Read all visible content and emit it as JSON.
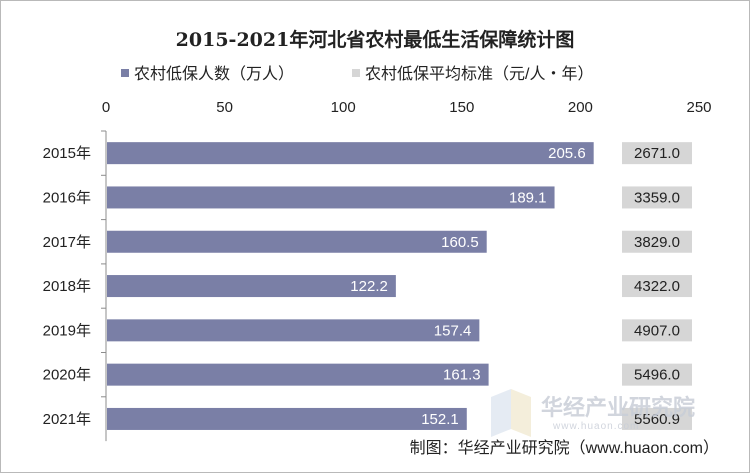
{
  "chart_data": {
    "type": "bar",
    "orientation": "horizontal",
    "title": "2015-2021年河北省农村最低生活保障统计图",
    "categories": [
      "2015年",
      "2016年",
      "2017年",
      "2018年",
      "2019年",
      "2020年",
      "2021年"
    ],
    "series": [
      {
        "name": "农村低保人数（万人）",
        "color": "#7a7fa6",
        "values": [
          205.6,
          189.1,
          160.5,
          122.2,
          157.4,
          161.3,
          152.1
        ],
        "labels": [
          "205.6",
          "189.1",
          "160.5",
          "122.2",
          "157.4",
          "161.3",
          "152.1"
        ]
      },
      {
        "name": "农村低保平均标准（元/人・年）",
        "color": "#d6d6d6",
        "values": [
          2671.0,
          3359.0,
          3829.0,
          4322.0,
          4907.0,
          5496.0,
          5560.9
        ],
        "labels": [
          "2671.0",
          "3359.0",
          "3829.0",
          "4322.0",
          "4907.0",
          "5496.0",
          "5560.9"
        ]
      }
    ],
    "xlim": [
      0,
      250
    ],
    "xticks": [
      "0",
      "50",
      "100",
      "150",
      "200",
      "250"
    ],
    "legend": "top",
    "grid": false,
    "source": "制图：华经产业研究院（www.huaon.com）"
  },
  "watermark": {
    "name": "华经产业研究院",
    "url": "www.huaon.com"
  }
}
